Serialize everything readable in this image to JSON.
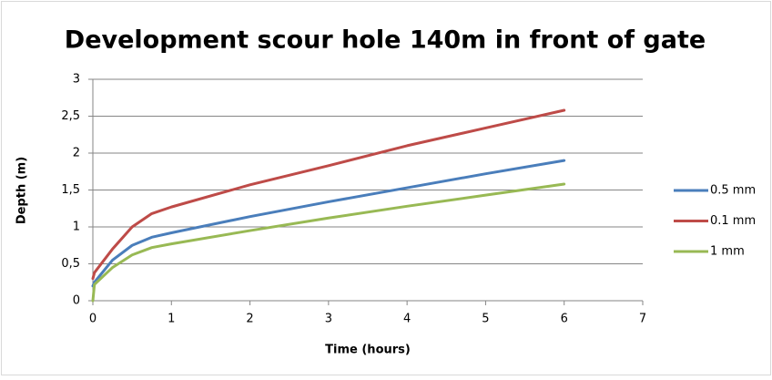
{
  "chart_data": {
    "type": "line",
    "title": "Development scour hole 140m in front of gate",
    "x_label": "Time (hours)",
    "y_label": "Depth (m)",
    "x": [
      0,
      0.02,
      0.25,
      0.5,
      0.75,
      1,
      2,
      3,
      4,
      5,
      6
    ],
    "series": [
      {
        "name": "0.5 mm",
        "color": "#4a7ebb",
        "values": [
          0.2,
          0.25,
          0.55,
          0.75,
          0.86,
          0.92,
          1.14,
          1.34,
          1.53,
          1.72,
          1.9
        ]
      },
      {
        "name": "0.1 mm",
        "color": "#be4b48",
        "values": [
          0.3,
          0.38,
          0.7,
          1.0,
          1.18,
          1.27,
          1.57,
          1.83,
          2.1,
          2.34,
          2.58
        ]
      },
      {
        "name": "1 mm",
        "color": "#98b954",
        "values": [
          0,
          0.22,
          0.45,
          0.62,
          0.72,
          0.77,
          0.95,
          1.12,
          1.28,
          1.43,
          1.58
        ]
      }
    ],
    "xlim": [
      0,
      7
    ],
    "xticks": [
      0,
      1,
      2,
      3,
      4,
      5,
      6,
      7
    ],
    "ylim": [
      0,
      3
    ],
    "yticks": [
      0,
      {
        "value": 0.5,
        "label": "0,5"
      },
      1,
      {
        "value": 1.5,
        "label": "1,5"
      },
      2,
      {
        "value": 2.5,
        "label": "2,5"
      },
      3
    ],
    "grid": true,
    "legend": "right"
  }
}
